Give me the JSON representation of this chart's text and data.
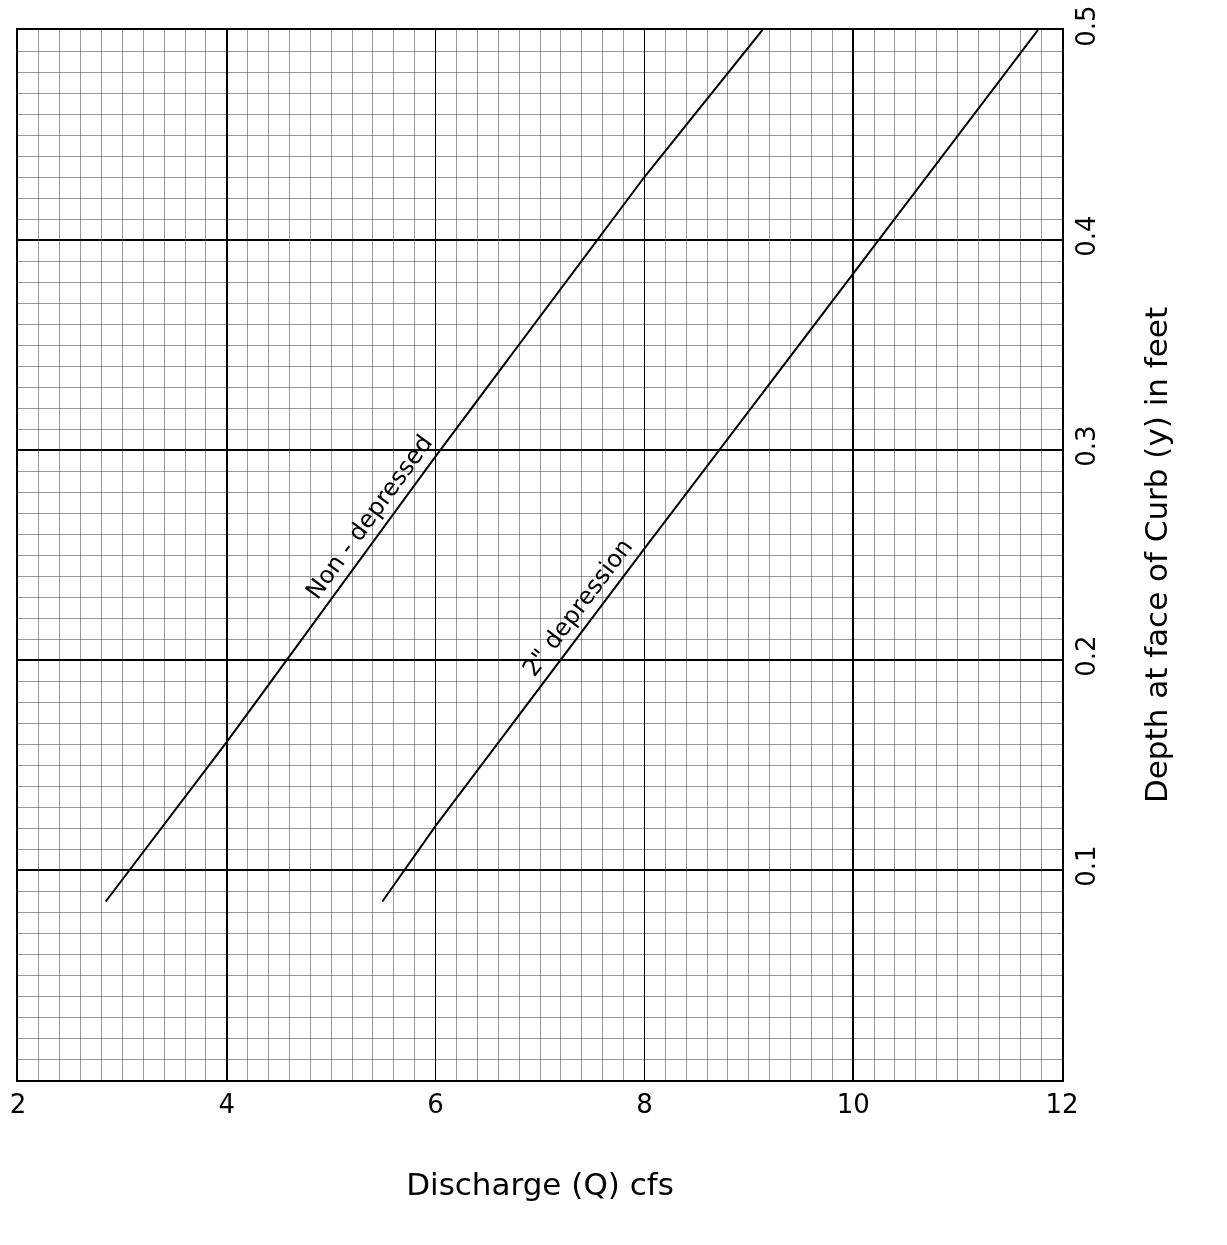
{
  "chart_data": {
    "type": "line",
    "xlabel": "Discharge (Q) cfs",
    "ylabel": "Depth at face of Curb (y) in feet",
    "xlim": [
      2,
      12
    ],
    "xticks": [
      2,
      4,
      6,
      8,
      10,
      12
    ],
    "ylim": [
      0,
      0.5
    ],
    "yticks": [
      0.1,
      0.2,
      0.3,
      0.4,
      0.5
    ],
    "grid": true,
    "marker": "none",
    "line_style": "solid",
    "series": [
      {
        "name": "Non - depressed",
        "color": "#000000",
        "x": [
          2.84,
          4,
          6,
          8,
          9.13
        ],
        "values": [
          0.085,
          0.161,
          0.297,
          0.43,
          0.5
        ]
      },
      {
        "name": "2\" depression",
        "color": "#000000",
        "x": [
          5.49,
          6,
          8,
          10,
          11.77
        ],
        "values": [
          0.085,
          0.121,
          0.253,
          0.384,
          0.5
        ]
      }
    ]
  }
}
